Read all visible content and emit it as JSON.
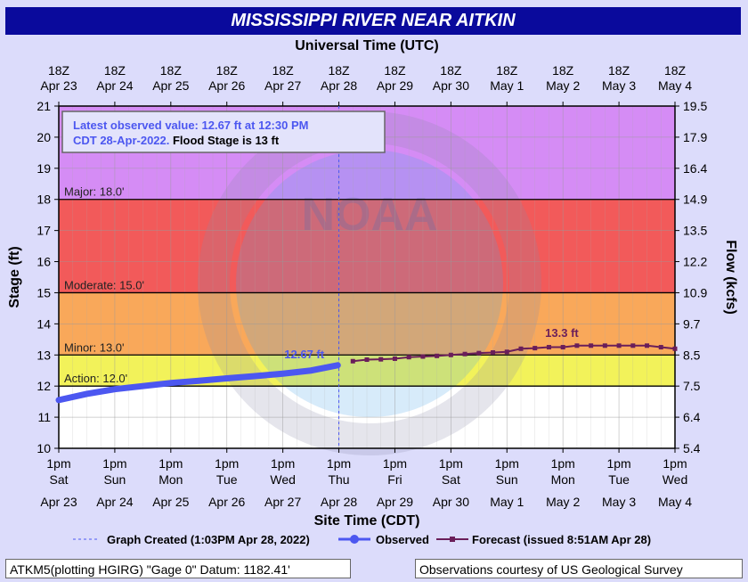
{
  "header": {
    "title": "MISSISSIPPI RIVER NEAR AITKIN"
  },
  "chart_data": {
    "type": "line",
    "top_axis_title": "Universal Time (UTC)",
    "xlabel": "Site Time (CDT)",
    "ylabel": "Stage (ft)",
    "ylabel_right": "Flow (kcfs)",
    "ylim": [
      10,
      21
    ],
    "xlim_days": [
      "Apr 23",
      "May 4"
    ],
    "y_ticks": [
      10,
      11,
      12,
      13,
      14,
      15,
      16,
      17,
      18,
      19,
      20,
      21
    ],
    "flow_ticks": [
      {
        "stage": 10,
        "label": "5.4"
      },
      {
        "stage": 11,
        "label": "6.4"
      },
      {
        "stage": 12,
        "label": "7.5"
      },
      {
        "stage": 13,
        "label": "8.5"
      },
      {
        "stage": 14,
        "label": "9.7"
      },
      {
        "stage": 15,
        "label": "10.9"
      },
      {
        "stage": 16,
        "label": "12.2"
      },
      {
        "stage": 17,
        "label": "13.5"
      },
      {
        "stage": 18,
        "label": "14.9"
      },
      {
        "stage": 19,
        "label": "16.4"
      },
      {
        "stage": 20,
        "label": "17.9"
      },
      {
        "stage": 21,
        "label": "19.5"
      }
    ],
    "top_ticks": [
      {
        "l1": "18Z",
        "l2": "Apr 23"
      },
      {
        "l1": "18Z",
        "l2": "Apr 24"
      },
      {
        "l1": "18Z",
        "l2": "Apr 25"
      },
      {
        "l1": "18Z",
        "l2": "Apr 26"
      },
      {
        "l1": "18Z",
        "l2": "Apr 27"
      },
      {
        "l1": "18Z",
        "l2": "Apr 28"
      },
      {
        "l1": "18Z",
        "l2": "Apr 29"
      },
      {
        "l1": "18Z",
        "l2": "Apr 30"
      },
      {
        "l1": "18Z",
        "l2": "May 1"
      },
      {
        "l1": "18Z",
        "l2": "May 2"
      },
      {
        "l1": "18Z",
        "l2": "May 3"
      },
      {
        "l1": "18Z",
        "l2": "May 4"
      }
    ],
    "bottom_ticks": [
      {
        "t": "1pm",
        "d": "Sat",
        "date": "Apr 23"
      },
      {
        "t": "1pm",
        "d": "Sun",
        "date": "Apr 24"
      },
      {
        "t": "1pm",
        "d": "Mon",
        "date": "Apr 25"
      },
      {
        "t": "1pm",
        "d": "Tue",
        "date": "Apr 26"
      },
      {
        "t": "1pm",
        "d": "Wed",
        "date": "Apr 27"
      },
      {
        "t": "1pm",
        "d": "Thu",
        "date": "Apr 28"
      },
      {
        "t": "1pm",
        "d": "Fri",
        "date": "Apr 29"
      },
      {
        "t": "1pm",
        "d": "Sat",
        "date": "Apr 30"
      },
      {
        "t": "1pm",
        "d": "Sun",
        "date": "May 1"
      },
      {
        "t": "1pm",
        "d": "Mon",
        "date": "May 2"
      },
      {
        "t": "1pm",
        "d": "Tue",
        "date": "May 3"
      },
      {
        "t": "1pm",
        "d": "Wed",
        "date": "May 4"
      }
    ],
    "zones": [
      {
        "name": "Major",
        "from": 18,
        "to": 21,
        "color": "#d58cf5"
      },
      {
        "name": "Moderate",
        "from": 15,
        "to": 18,
        "color": "#f25a5a"
      },
      {
        "name": "Minor",
        "from": 13,
        "to": 15,
        "color": "#f9a85a"
      },
      {
        "name": "Action",
        "from": 12,
        "to": 13,
        "color": "#f2f25a"
      },
      {
        "name": "Normal",
        "from": 10,
        "to": 12,
        "color": "#ffffff"
      }
    ],
    "thresholds": [
      {
        "label": "Major: 18.0'",
        "stage": 18.0
      },
      {
        "label": "Moderate: 15.0'",
        "stage": 15.0
      },
      {
        "label": "Minor: 13.0'",
        "stage": 13.0
      },
      {
        "label": "Action: 12.0'",
        "stage": 12.0
      }
    ],
    "info_box": {
      "line1": "Latest observed value: 12.67 ft at 12:30 PM",
      "line2a": "CDT 28-Apr-2022.",
      "line2b": " Flood Stage is 13 ft"
    },
    "observed_label": "12.67 ft",
    "forecast_label": "13.3 ft",
    "watermark": "NOAA",
    "series": [
      {
        "name": "Observed",
        "color": "#4c57f0",
        "points": [
          [
            0,
            11.55
          ],
          [
            0.5,
            11.75
          ],
          [
            1,
            11.9
          ],
          [
            1.5,
            12.0
          ],
          [
            2,
            12.1
          ],
          [
            2.5,
            12.17
          ],
          [
            3,
            12.25
          ],
          [
            3.5,
            12.32
          ],
          [
            4,
            12.4
          ],
          [
            4.5,
            12.5
          ],
          [
            4.98,
            12.67
          ]
        ]
      },
      {
        "name": "Forecast",
        "color": "#6a1e5a",
        "points": [
          [
            5.25,
            12.8
          ],
          [
            5.5,
            12.85
          ],
          [
            5.75,
            12.86
          ],
          [
            6,
            12.88
          ],
          [
            6.25,
            12.93
          ],
          [
            6.5,
            12.95
          ],
          [
            6.75,
            12.97
          ],
          [
            7,
            13.0
          ],
          [
            7.25,
            13.03
          ],
          [
            7.5,
            13.06
          ],
          [
            7.75,
            13.08
          ],
          [
            8,
            13.1
          ],
          [
            8.25,
            13.2
          ],
          [
            8.5,
            13.22
          ],
          [
            8.75,
            13.25
          ],
          [
            9,
            13.25
          ],
          [
            9.25,
            13.3
          ],
          [
            9.5,
            13.3
          ],
          [
            9.75,
            13.3
          ],
          [
            10,
            13.3
          ],
          [
            10.25,
            13.3
          ],
          [
            10.5,
            13.3
          ],
          [
            10.75,
            13.25
          ],
          [
            11,
            13.2
          ]
        ]
      }
    ],
    "created_marker_day": 5.0
  },
  "legend": {
    "created": "Graph Created (1:03PM Apr 28, 2022)",
    "observed": "Observed",
    "forecast": "Forecast (issued 8:51AM Apr 28)"
  },
  "footer": {
    "left": "ATKM5(plotting HGIRG) \"Gage 0\" Datum: 1182.41'",
    "right": "Observations courtesy of US Geological Survey"
  }
}
